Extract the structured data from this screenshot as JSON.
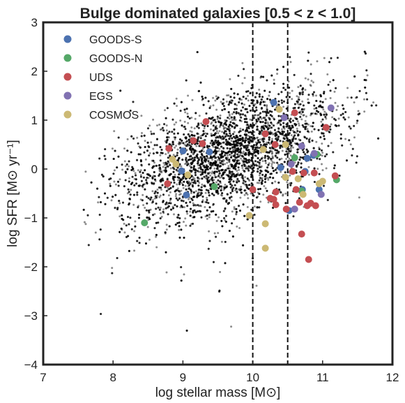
{
  "chart_data": {
    "type": "scatter",
    "title": "Bulge dominated galaxies [0.5 < z < 1.0]",
    "xlabel": "log stellar mass [M⊙]",
    "ylabel": "log SFR [M⊙ yr⁻¹]",
    "xlim": [
      7,
      12
    ],
    "ylim": [
      -4,
      3
    ],
    "xticks": [
      "7",
      "8",
      "9",
      "10",
      "11",
      "12"
    ],
    "yticks": [
      "−4",
      "−3",
      "−2",
      "−1",
      "0",
      "1",
      "2",
      "3"
    ],
    "vlines": [
      10.0,
      10.5
    ],
    "grid": false,
    "legend_position": "top-left",
    "background_cloud": {
      "color": "#000000",
      "description_center": [
        9.6,
        0.3
      ],
      "x_range": [
        7.5,
        11.8
      ],
      "y_range": [
        -3.7,
        2.4
      ]
    },
    "series": [
      {
        "name": "GOODS-S",
        "color": "#4C72B0",
        "points": [
          [
            9.0,
            0.37
          ],
          [
            9.38,
            0.35
          ],
          [
            8.98,
            -0.04
          ],
          [
            9.05,
            -0.53
          ],
          [
            10.4,
            0.03
          ],
          [
            10.52,
            -0.85
          ],
          [
            10.71,
            -0.42
          ],
          [
            10.78,
            0.22
          ],
          [
            10.87,
            0.28
          ],
          [
            10.95,
            -0.42
          ],
          [
            10.75,
            -0.05
          ],
          [
            10.3,
            1.36
          ]
        ]
      },
      {
        "name": "GOODS-N",
        "color": "#55A868",
        "points": [
          [
            8.45,
            -1.1
          ],
          [
            9.45,
            -0.36
          ],
          [
            10.6,
            0.23
          ],
          [
            10.92,
            0.3
          ],
          [
            11.2,
            -0.22
          ],
          [
            10.7,
            -0.45
          ]
        ]
      },
      {
        "name": "UDS",
        "color": "#C44E52",
        "points": [
          [
            8.8,
            0.42
          ],
          [
            9.15,
            0.58
          ],
          [
            9.28,
            0.52
          ],
          [
            9.33,
            0.97
          ],
          [
            8.78,
            -0.3
          ],
          [
            10.0,
            -0.42
          ],
          [
            10.18,
            0.72
          ],
          [
            10.32,
            0.5
          ],
          [
            10.25,
            -0.6
          ],
          [
            10.3,
            -0.62
          ],
          [
            10.33,
            -0.47
          ],
          [
            10.33,
            -0.73
          ],
          [
            10.48,
            -0.82
          ],
          [
            10.6,
            1.15
          ],
          [
            10.62,
            -0.42
          ],
          [
            10.67,
            -0.68
          ],
          [
            10.73,
            -0.08
          ],
          [
            10.78,
            -0.75
          ],
          [
            10.83,
            -0.7
          ],
          [
            10.88,
            -0.08
          ],
          [
            10.8,
            -1.85
          ],
          [
            10.7,
            -1.33
          ],
          [
            10.9,
            -0.75
          ],
          [
            11.05,
            0.85
          ],
          [
            11.18,
            -0.14
          ],
          [
            10.57,
            -0.05
          ]
        ]
      },
      {
        "name": "EGS",
        "color": "#8172B2",
        "points": [
          [
            10.45,
            1.05
          ],
          [
            10.6,
            -0.82
          ],
          [
            10.7,
            0.47
          ],
          [
            10.88,
            0.32
          ],
          [
            10.98,
            -0.52
          ],
          [
            11.12,
            1.25
          ],
          [
            10.55,
            0.1
          ]
        ]
      },
      {
        "name": "COSMOS",
        "color": "#CCB974",
        "points": [
          [
            8.85,
            0.2
          ],
          [
            8.9,
            0.1
          ],
          [
            9.07,
            -0.12
          ],
          [
            9.95,
            -0.95
          ],
          [
            10.15,
            0.4
          ],
          [
            10.18,
            -1.12
          ],
          [
            10.18,
            -1.62
          ],
          [
            10.38,
            1.22
          ],
          [
            10.47,
            0.5
          ],
          [
            10.47,
            -0.17
          ],
          [
            10.65,
            -0.2
          ],
          [
            10.95,
            -0.3
          ],
          [
            11.0,
            -0.25
          ],
          [
            10.72,
            -0.52
          ]
        ]
      }
    ]
  }
}
